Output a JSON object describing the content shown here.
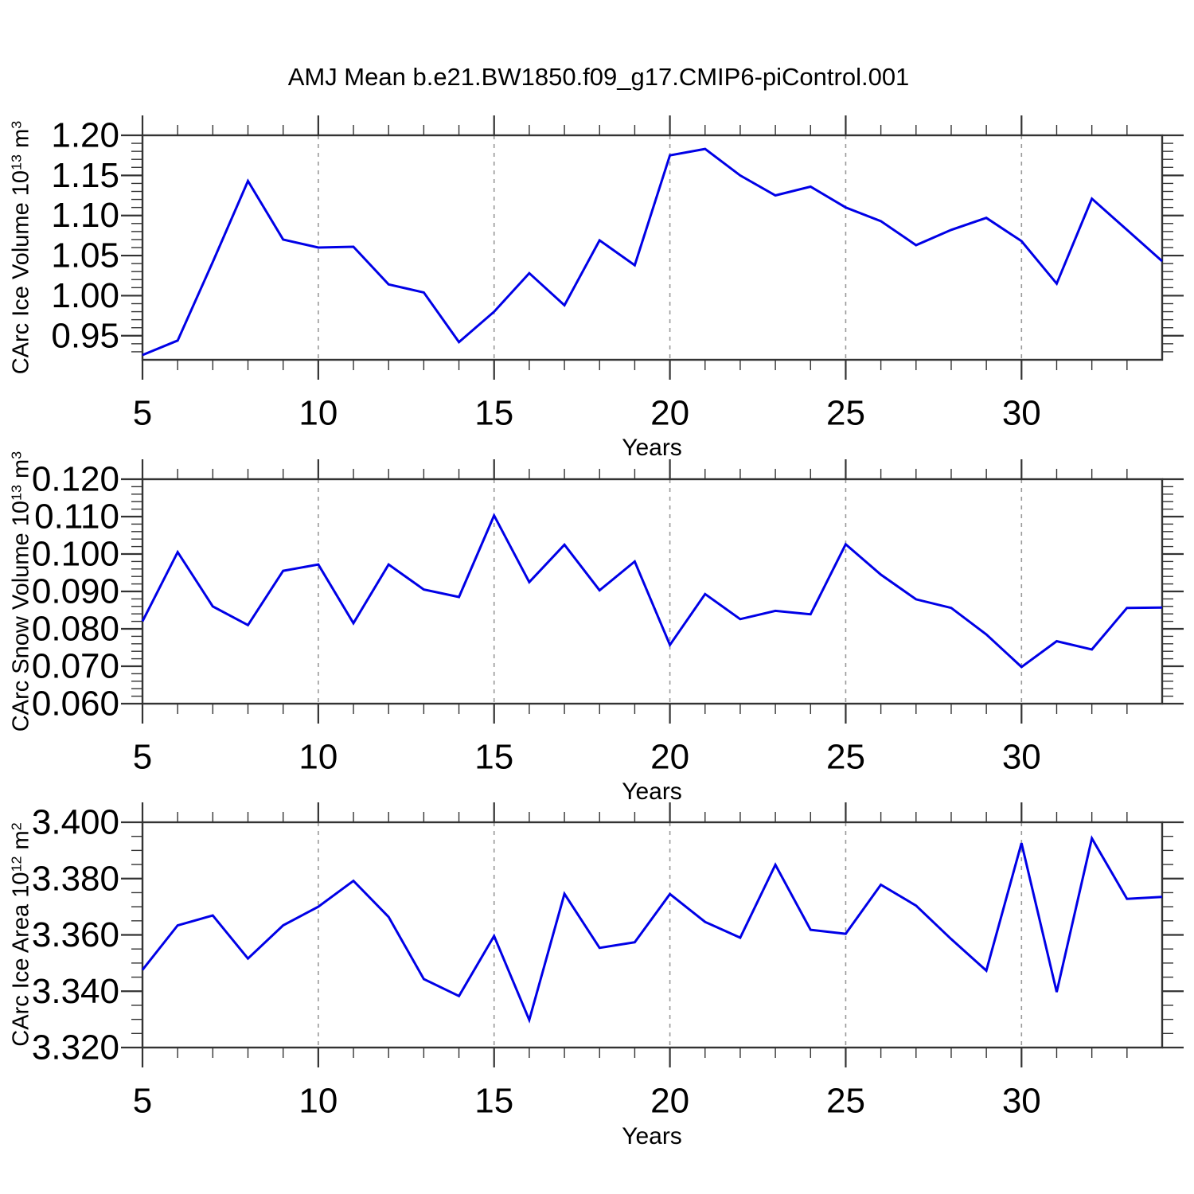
{
  "title": "AMJ Mean b.e21.BW1850.f09_g17.CMIP6-piControl.001",
  "style": {
    "line_color": "#0000e6",
    "grid_color": "#999999",
    "axis_color": "#333333",
    "text_color": "#000000",
    "background": "#ffffff"
  },
  "chart_data": [
    {
      "type": "line",
      "name": "carc-ice-volume",
      "xlabel": "Years",
      "ylabel_parts": [
        {
          "t": "CArc Ice Volume 10",
          "sup": false
        },
        {
          "t": "13",
          "sup": true
        },
        {
          "t": " m",
          "sup": false
        },
        {
          "t": "3",
          "sup": true
        }
      ],
      "x": [
        5,
        6,
        7,
        8,
        9,
        10,
        11,
        12,
        13,
        14,
        15,
        16,
        17,
        18,
        19,
        20,
        21,
        22,
        23,
        24,
        25,
        26,
        27,
        28,
        29,
        30,
        31,
        32,
        33,
        34
      ],
      "values": [
        0.926,
        0.944,
        1.042,
        1.143,
        1.07,
        1.06,
        1.061,
        1.014,
        1.004,
        0.942,
        0.98,
        1.028,
        0.988,
        1.069,
        1.038,
        1.175,
        1.183,
        1.15,
        1.125,
        1.136,
        1.11,
        1.093,
        1.063,
        1.082,
        1.097,
        1.068,
        1.015,
        1.121,
        1.082,
        1.043
      ],
      "xlim": [
        5,
        34
      ],
      "ylim": [
        0.92,
        1.2
      ],
      "xtick_values": [
        5,
        10,
        15,
        20,
        25,
        30
      ],
      "xtick_labels": [
        "5",
        "10",
        "15",
        "20",
        "25",
        "30"
      ],
      "xminor_step": 1,
      "ytick_values": [
        0.95,
        1.0,
        1.05,
        1.1,
        1.15,
        1.2
      ],
      "ytick_labels": [
        "0.95",
        "1.00",
        "1.05",
        "1.10",
        "1.15",
        "1.20"
      ],
      "yminor_step": 0.01,
      "grid_x": [
        10,
        15,
        20,
        25,
        30
      ],
      "grid_on": "vertical-dashed",
      "legend": "none"
    },
    {
      "type": "line",
      "name": "carc-snow-volume",
      "xlabel": "Years",
      "ylabel_parts": [
        {
          "t": "CArc Snow Volume 10",
          "sup": false
        },
        {
          "t": "13",
          "sup": true
        },
        {
          "t": " m",
          "sup": false
        },
        {
          "t": "3",
          "sup": true
        }
      ],
      "x": [
        5,
        6,
        7,
        8,
        9,
        10,
        11,
        12,
        13,
        14,
        15,
        16,
        17,
        18,
        19,
        20,
        21,
        22,
        23,
        24,
        25,
        26,
        27,
        28,
        29,
        30,
        31,
        32,
        33,
        34
      ],
      "values": [
        0.082,
        0.1005,
        0.086,
        0.081,
        0.0955,
        0.0972,
        0.0815,
        0.0972,
        0.0905,
        0.0885,
        0.1103,
        0.0925,
        0.1025,
        0.0903,
        0.098,
        0.0757,
        0.0893,
        0.0826,
        0.0848,
        0.0839,
        0.1026,
        0.0945,
        0.0879,
        0.0856,
        0.0785,
        0.0698,
        0.0767,
        0.0745,
        0.0856,
        0.0857
      ],
      "xlim": [
        5,
        34
      ],
      "ylim": [
        0.06,
        0.12
      ],
      "xtick_values": [
        5,
        10,
        15,
        20,
        25,
        30
      ],
      "xtick_labels": [
        "5",
        "10",
        "15",
        "20",
        "25",
        "30"
      ],
      "xminor_step": 1,
      "ytick_values": [
        0.06,
        0.07,
        0.08,
        0.09,
        0.1,
        0.11,
        0.12
      ],
      "ytick_labels": [
        "0.060",
        "0.070",
        "0.080",
        "0.090",
        "0.100",
        "0.110",
        "0.120"
      ],
      "yminor_step": 0.002,
      "grid_x": [
        10,
        15,
        20,
        25,
        30
      ],
      "grid_on": "vertical-dashed",
      "legend": "none"
    },
    {
      "type": "line",
      "name": "carc-ice-area",
      "xlabel": "Years",
      "ylabel_parts": [
        {
          "t": "CArc Ice Area 10",
          "sup": false
        },
        {
          "t": "12",
          "sup": true
        },
        {
          "t": " m",
          "sup": false
        },
        {
          "t": "2",
          "sup": true
        }
      ],
      "x": [
        5,
        6,
        7,
        8,
        9,
        10,
        11,
        12,
        13,
        14,
        15,
        16,
        17,
        18,
        19,
        20,
        21,
        22,
        23,
        24,
        25,
        26,
        27,
        28,
        29,
        30,
        31,
        32,
        33,
        34
      ],
      "values": [
        3.3476,
        3.3634,
        3.3669,
        3.3516,
        3.3634,
        3.37,
        3.3792,
        3.3664,
        3.3443,
        3.3383,
        3.3596,
        3.3298,
        3.3746,
        3.3554,
        3.3574,
        3.3745,
        3.3646,
        3.359,
        3.3849,
        3.3618,
        3.3604,
        3.3778,
        3.3704,
        3.3585,
        3.3473,
        3.3926,
        3.3397,
        3.3943,
        3.3728,
        3.3735
      ],
      "xlim": [
        5,
        34
      ],
      "ylim": [
        3.32,
        3.4
      ],
      "xtick_values": [
        5,
        10,
        15,
        20,
        25,
        30
      ],
      "xtick_labels": [
        "5",
        "10",
        "15",
        "20",
        "25",
        "30"
      ],
      "xminor_step": 1,
      "ytick_values": [
        3.32,
        3.34,
        3.36,
        3.38,
        3.4
      ],
      "ytick_labels": [
        "3.320",
        "3.340",
        "3.360",
        "3.380",
        "3.400"
      ],
      "yminor_step": 0.005,
      "grid_x": [
        10,
        15,
        20,
        25,
        30
      ],
      "grid_on": "vertical-dashed",
      "legend": "none"
    }
  ]
}
